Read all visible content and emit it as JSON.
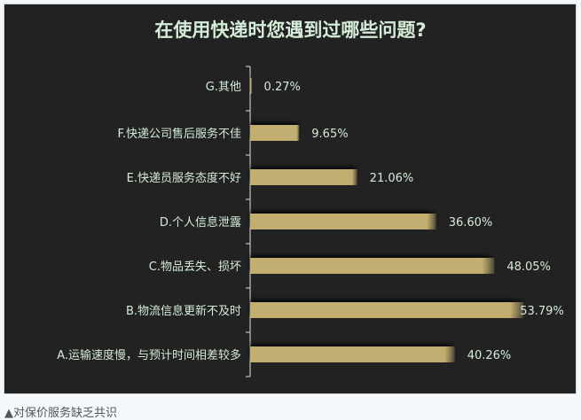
{
  "chart_data": {
    "type": "bar",
    "orientation": "horizontal",
    "title": "在使用快递时您遇到过哪些问题?",
    "categories": [
      "G.其他",
      "F.快递公司售后服务不佳",
      "E.快递员服务态度不好",
      "D.个人信息泄露",
      "C.物品丢失、损坏",
      "B.物流信息更新不及时",
      "A.运输速度慢，与预计时间相差较多"
    ],
    "values": [
      0.27,
      9.65,
      21.06,
      36.6,
      48.05,
      53.79,
      40.26
    ],
    "labels": [
      "0.27%",
      "9.65%",
      "21.06%",
      "36.60%",
      "48.05%",
      "53.79%",
      "40.26%"
    ],
    "unit": "%",
    "grid": false,
    "colors": {
      "bar": "#c2ae70",
      "background": "#222222",
      "label": "#d4ecd8",
      "axis": "#e0e0e0"
    }
  },
  "caption": "▲对保价服务缺乏共识"
}
